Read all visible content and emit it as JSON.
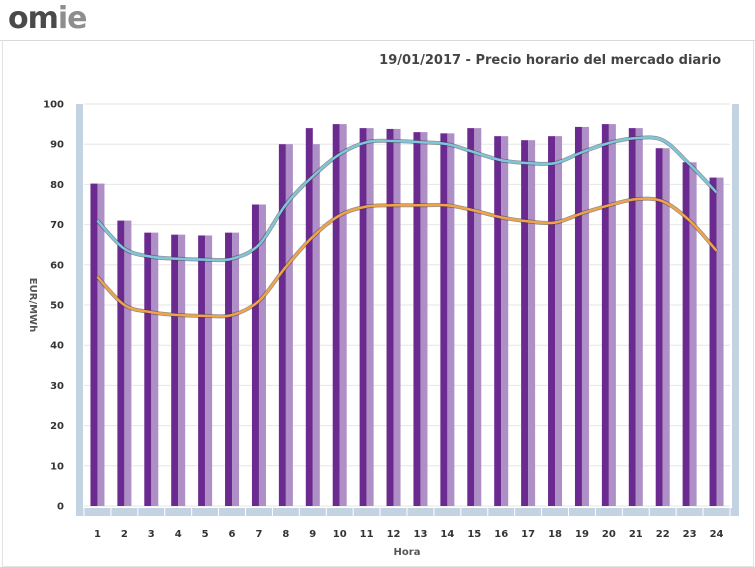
{
  "header": {
    "logo_text_a": "om",
    "logo_text_b": "ie"
  },
  "chart_data": {
    "type": "bar",
    "title": "19/01/2017 - Precio horario del mercado diario",
    "xlabel": "Hora",
    "ylabel": "EUR/MWh",
    "ylim": [
      0,
      100
    ],
    "yticks": [
      0,
      10,
      20,
      30,
      40,
      50,
      60,
      70,
      80,
      90,
      100
    ],
    "grid": true,
    "categories": [
      "1",
      "2",
      "3",
      "4",
      "5",
      "6",
      "7",
      "8",
      "9",
      "10",
      "11",
      "12",
      "13",
      "14",
      "15",
      "16",
      "17",
      "18",
      "19",
      "20",
      "21",
      "22",
      "23",
      "24"
    ],
    "series": [
      {
        "kind": "bar",
        "color": "#6a2a8f",
        "values": [
          80.2,
          71.0,
          68.0,
          67.5,
          67.3,
          68.0,
          75.0,
          90.0,
          94.0,
          95.0,
          94.0,
          93.8,
          93.0,
          92.7,
          94.0,
          92.0,
          91.0,
          92.0,
          94.3,
          95.0,
          94.0,
          89.0,
          85.5,
          81.7
        ]
      },
      {
        "kind": "bar",
        "color": "#ae8fc6",
        "values": [
          80.2,
          71.0,
          68.0,
          67.5,
          67.3,
          68.0,
          75.0,
          90.0,
          90.0,
          95.0,
          94.0,
          93.8,
          93.0,
          92.7,
          94.0,
          92.0,
          91.0,
          92.0,
          94.3,
          95.0,
          94.0,
          89.0,
          85.5,
          81.7
        ]
      },
      {
        "kind": "line",
        "color": "#7fc6dd",
        "values": [
          71.0,
          64.0,
          62.0,
          61.5,
          61.3,
          61.5,
          65.0,
          75.0,
          82.0,
          87.5,
          90.5,
          90.8,
          90.5,
          90.0,
          88.0,
          86.0,
          85.3,
          85.3,
          88.0,
          90.3,
          91.5,
          91.0,
          85.0,
          78.0
        ]
      },
      {
        "kind": "line",
        "color": "#f0a34a",
        "values": [
          57.0,
          50.0,
          48.2,
          47.5,
          47.3,
          47.5,
          51.0,
          59.5,
          67.0,
          72.3,
          74.5,
          74.8,
          74.8,
          74.8,
          73.5,
          71.8,
          70.8,
          70.5,
          72.8,
          74.8,
          76.3,
          75.8,
          71.0,
          63.5
        ]
      }
    ]
  }
}
